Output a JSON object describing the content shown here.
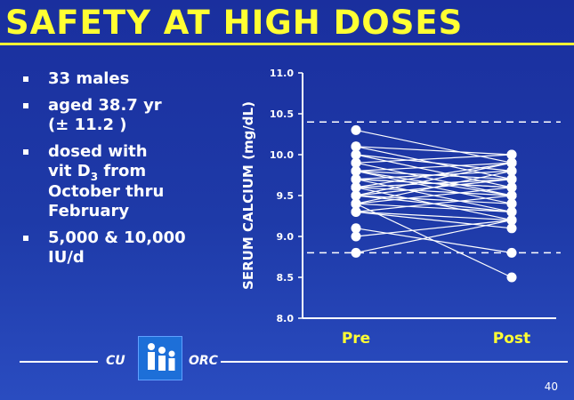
{
  "slide": {
    "title": "SAFETY AT HIGH DOSES",
    "bullets": {
      "b1": "33 males",
      "b2_line1": "aged 38.7 yr",
      "b2_line2": "(± 11.2 )",
      "b3_line1": "dosed with",
      "b3_line2a": "vit D",
      "b3_line2sub": "3",
      "b3_line2b": " from",
      "b3_line3": "October thru",
      "b3_line4": "February",
      "b4_line1": "5,000 & 10,000",
      "b4_line2": "IU/d"
    },
    "footer": {
      "left": "CU",
      "right": "ORC"
    },
    "page_number": "40",
    "colors": {
      "title": "#ffff33",
      "background": "#1e3aa8",
      "text": "#ffffff"
    }
  },
  "chart_data": {
    "type": "line",
    "ylabel": "SERUM CALCIUM (mg/dL)",
    "categories": [
      "Pre",
      "Post"
    ],
    "ylim": [
      8.0,
      11.0
    ],
    "yticks": [
      "8.0",
      "8.5",
      "9.0",
      "9.5",
      "10.0",
      "10.5",
      "11.0"
    ],
    "reference_lines": [
      10.4,
      8.8
    ],
    "subjects": [
      [
        10.3,
        9.9
      ],
      [
        10.1,
        9.7
      ],
      [
        10.1,
        10.0
      ],
      [
        10.0,
        9.8
      ],
      [
        10.0,
        9.6
      ],
      [
        9.9,
        10.0
      ],
      [
        9.9,
        9.5
      ],
      [
        9.8,
        9.9
      ],
      [
        9.8,
        9.4
      ],
      [
        9.8,
        9.7
      ],
      [
        9.7,
        9.8
      ],
      [
        9.7,
        9.3
      ],
      [
        9.7,
        9.6
      ],
      [
        9.6,
        9.9
      ],
      [
        9.6,
        9.5
      ],
      [
        9.6,
        9.2
      ],
      [
        9.5,
        9.7
      ],
      [
        9.5,
        9.4
      ],
      [
        9.5,
        9.9
      ],
      [
        9.4,
        9.3
      ],
      [
        9.4,
        9.6
      ],
      [
        9.4,
        9.8
      ],
      [
        9.3,
        9.2
      ],
      [
        9.3,
        9.5
      ],
      [
        9.3,
        9.1
      ],
      [
        9.8,
        9.5
      ],
      [
        9.6,
        9.7
      ],
      [
        9.5,
        9.3
      ],
      [
        9.7,
        9.6
      ],
      [
        9.1,
        8.8
      ],
      [
        9.0,
        9.2
      ],
      [
        8.8,
        9.2
      ],
      [
        9.4,
        8.5
      ]
    ]
  }
}
